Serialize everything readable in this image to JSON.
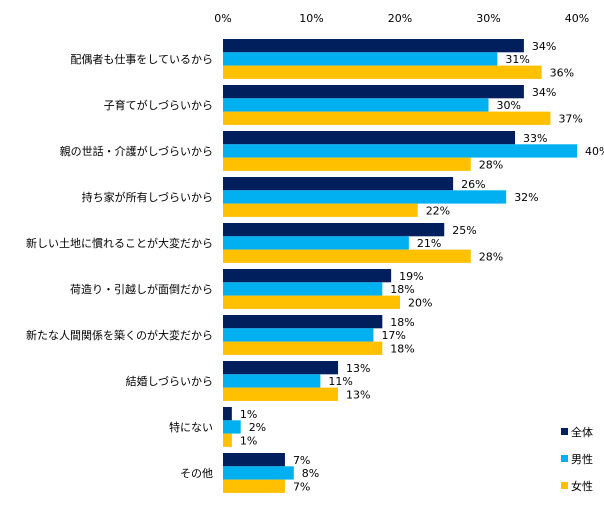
{
  "chart_data": {
    "type": "bar",
    "orientation": "horizontal",
    "categories": [
      "配偶者も仕事をしているから",
      "子育てがしづらいから",
      "親の世話・介護がしづらいから",
      "持ち家が所有しづらいから",
      "新しい土地に慣れることが大変だから",
      "荷造り・引越しが面倒だから",
      "新たな人間関係を築くのが大変だから",
      "結婚しづらいから",
      "特にない",
      "その他"
    ],
    "series": [
      {
        "name": "全体",
        "color": "#001f5c",
        "values": [
          34,
          34,
          33,
          26,
          25,
          19,
          18,
          13,
          1,
          7
        ]
      },
      {
        "name": "男性",
        "color": "#00b0f0",
        "values": [
          31,
          30,
          40,
          32,
          21,
          18,
          17,
          11,
          2,
          8
        ]
      },
      {
        "name": "女性",
        "color": "#ffc000",
        "values": [
          36,
          37,
          28,
          22,
          28,
          20,
          18,
          13,
          1,
          7
        ]
      }
    ],
    "xlim": [
      0,
      40
    ],
    "xticks": [
      "0%",
      "10%",
      "20%",
      "30%",
      "40%"
    ],
    "value_suffix": "%",
    "grid": false,
    "legend_placement": "bottom-right"
  }
}
